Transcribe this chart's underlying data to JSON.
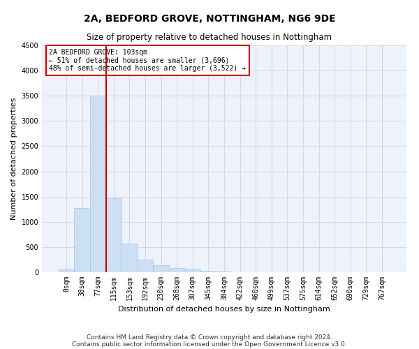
{
  "title": "2A, BEDFORD GROVE, NOTTINGHAM, NG6 9DE",
  "subtitle": "Size of property relative to detached houses in Nottingham",
  "xlabel": "Distribution of detached houses by size in Nottingham",
  "ylabel": "Number of detached properties",
  "bar_labels": [
    "0sqm",
    "38sqm",
    "77sqm",
    "115sqm",
    "153sqm",
    "192sqm",
    "230sqm",
    "268sqm",
    "307sqm",
    "345sqm",
    "384sqm",
    "422sqm",
    "460sqm",
    "499sqm",
    "537sqm",
    "575sqm",
    "614sqm",
    "652sqm",
    "690sqm",
    "729sqm",
    "767sqm"
  ],
  "bar_values": [
    60,
    1280,
    3500,
    1470,
    570,
    250,
    140,
    80,
    50,
    30,
    10,
    5,
    5,
    0,
    0,
    5,
    0,
    0,
    0,
    0,
    0
  ],
  "bar_color": "#cce0f5",
  "bar_edgecolor": "#aac4e0",
  "vline_color": "#cc0000",
  "ylim": [
    0,
    4500
  ],
  "yticks": [
    0,
    500,
    1000,
    1500,
    2000,
    2500,
    3000,
    3500,
    4000,
    4500
  ],
  "annotation_text": "2A BEDFORD GROVE: 103sqm\n← 51% of detached houses are smaller (3,696)\n48% of semi-detached houses are larger (3,522) →",
  "annotation_box_color": "#cc0000",
  "footer_line1": "Contains HM Land Registry data © Crown copyright and database right 2024.",
  "footer_line2": "Contains public sector information licensed under the Open Government Licence v3.0.",
  "bg_color": "#edf2fb",
  "grid_color": "#d0d8e8",
  "title_fontsize": 10,
  "subtitle_fontsize": 8.5,
  "axis_label_fontsize": 8,
  "tick_fontsize": 7,
  "footer_fontsize": 6.5
}
